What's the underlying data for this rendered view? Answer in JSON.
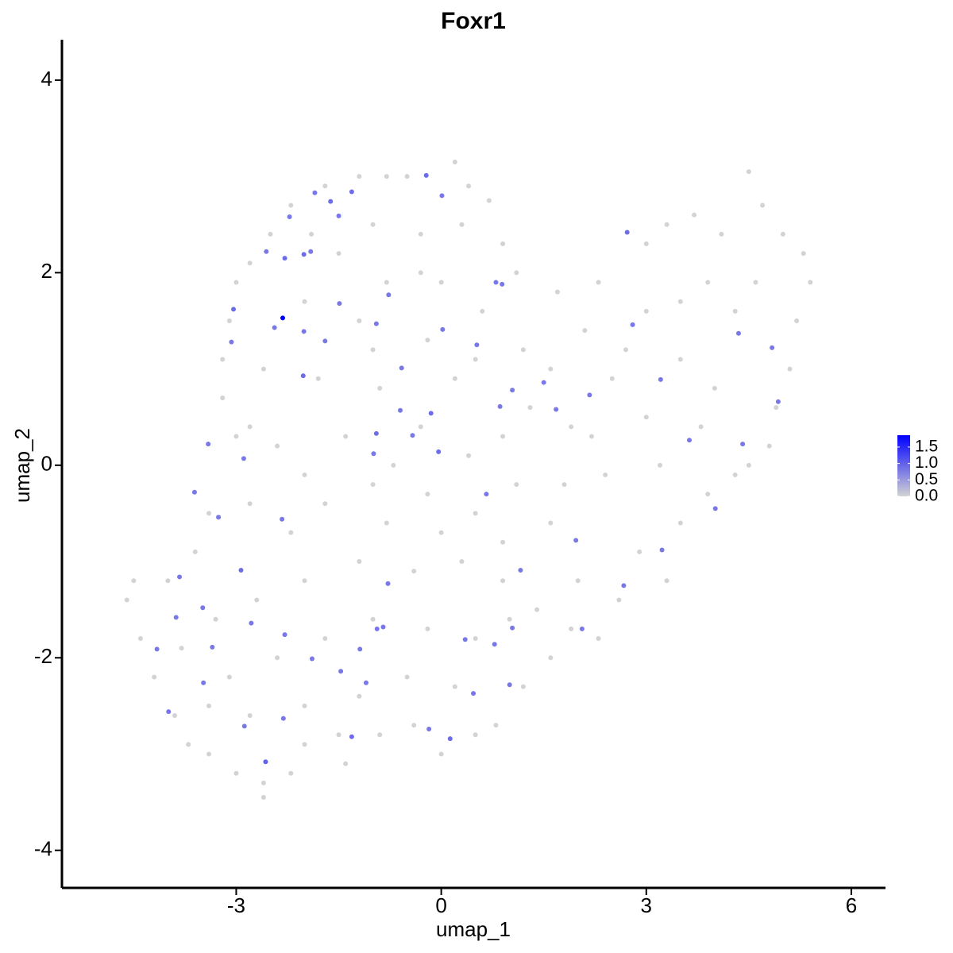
{
  "chart_data": {
    "type": "scatter",
    "title": "Foxr1",
    "x_label": "umap_1",
    "y_label": "umap_2",
    "x": [
      -2.32,
      -3.04,
      -3.07,
      -2.56,
      -2.29,
      -2.22,
      -2.01,
      -1.91,
      -1.85,
      -1.31,
      -1.62,
      -1.5,
      -0.22,
      0.01,
      -1.49,
      -2.01,
      -2.02,
      -1.7,
      -2.44,
      -2.89,
      -3.41,
      -3.61,
      -3.26,
      -2.33,
      -2.93,
      -3.83,
      -0.95,
      -0.58,
      -0.95,
      -0.6,
      -0.15,
      -0.42,
      -0.04,
      -0.99,
      -0.77,
      0.02,
      0.52,
      0.8,
      0.89,
      1.04,
      0.86,
      1.68,
      1.5,
      2.17,
      2.72,
      2.8,
      3.21,
      3.63,
      4.35,
      4.84,
      4.93,
      4.41,
      4.01,
      3.23,
      2.67,
      1.97,
      2.06,
      1.16,
      0.66,
      -0.78,
      -0.94,
      -0.85,
      1.04,
      0.35,
      0.78,
      1.0,
      0.47,
      -0.18,
      0.13,
      -1.19,
      -1.1,
      -1.31,
      -1.89,
      -1.47,
      -2.29,
      -2.78,
      -3.35,
      -3.48,
      -4.16,
      -3.99,
      -3.88,
      -3.49,
      -2.88,
      -2.57,
      -2.31,
      -1.7,
      -1.2,
      -0.8,
      -0.5,
      0.2,
      0.4,
      0.7,
      -2.2,
      -2.5,
      -2.8,
      -3.0,
      -3.1,
      -3.2,
      -3.2,
      -3.0,
      -1.0,
      -0.3,
      0.3,
      0.9,
      1.1,
      -1.5,
      -0.8,
      0.0,
      0.6,
      -2.0,
      -1.2,
      -0.2,
      1.2,
      -2.6,
      -1.8,
      -0.9,
      0.2,
      1.3,
      -2.8,
      -1.4,
      -0.3,
      0.9,
      1.9,
      2.5,
      2.1,
      1.7,
      2.3,
      3.0,
      3.3,
      3.7,
      4.1,
      4.5,
      4.7,
      5.0,
      5.3,
      5.4,
      5.2,
      5.1,
      4.9,
      4.8,
      4.5,
      4.3,
      3.9,
      3.5,
      3.0,
      4.3,
      4.6,
      2.7,
      3.5,
      4.0,
      3.0,
      3.8,
      2.4,
      3.2,
      3.9,
      3.5,
      2.9,
      3.3,
      2.6,
      2.0,
      1.6,
      1.1,
      0.5,
      -0.2,
      -1.0,
      -2.0,
      -2.8,
      -3.4,
      -3.6,
      -4.0,
      -4.5,
      -4.6,
      -4.4,
      -4.2,
      -3.9,
      -3.7,
      -3.4,
      -3.0,
      -2.6,
      -2.6,
      -2.2,
      -2.0,
      -1.5,
      -1.4,
      -0.9,
      -0.4,
      0.0,
      0.5,
      0.8,
      1.2,
      1.6,
      1.9,
      2.3,
      1.4,
      0.9,
      0.3,
      -0.4,
      -1.2,
      -2.0,
      -2.7,
      -3.3,
      -3.8,
      -3.1,
      -2.4,
      -1.7,
      -1.0,
      -0.2,
      0.5,
      1.0,
      -0.5,
      0.2,
      -1.2,
      -2.0,
      -2.8,
      -3.4,
      -0.7,
      0.4,
      -1.7,
      -2.4,
      -2.2,
      -0.8,
      0.0,
      0.9,
      1.8,
      2.2,
      1.6,
      -1.0,
      0.5,
      -1.9,
      -0.3
    ],
    "y": [
      1.53,
      1.62,
      1.28,
      2.22,
      2.15,
      2.58,
      2.19,
      2.22,
      2.83,
      2.84,
      2.74,
      2.59,
      3.01,
      2.8,
      1.68,
      1.39,
      0.93,
      1.29,
      1.43,
      0.07,
      0.22,
      -0.28,
      -0.54,
      -0.56,
      -1.09,
      -1.16,
      1.47,
      1.01,
      0.33,
      0.57,
      0.54,
      0.31,
      0.14,
      0.12,
      1.77,
      1.41,
      1.25,
      1.9,
      1.88,
      0.78,
      0.61,
      0.58,
      0.86,
      0.73,
      2.42,
      1.46,
      0.89,
      0.26,
      1.37,
      1.22,
      0.66,
      0.22,
      -0.45,
      -0.88,
      -1.25,
      -0.78,
      -1.7,
      -1.09,
      -0.3,
      -1.23,
      -1.7,
      -1.68,
      -1.69,
      -1.81,
      -1.86,
      -2.28,
      -2.37,
      -2.74,
      -2.84,
      -1.91,
      -2.26,
      -2.82,
      -2.01,
      -2.14,
      -1.76,
      -1.64,
      -1.89,
      -2.26,
      -1.91,
      -2.56,
      -1.58,
      -1.48,
      -2.71,
      -3.08,
      -2.63,
      2.9,
      3.0,
      3.0,
      3.0,
      3.15,
      2.9,
      2.75,
      2.7,
      2.4,
      2.1,
      1.9,
      1.5,
      1.1,
      0.7,
      0.3,
      2.5,
      2.4,
      2.5,
      2.3,
      2.0,
      2.2,
      1.9,
      1.9,
      1.6,
      1.7,
      1.5,
      1.3,
      1.2,
      1.0,
      0.9,
      0.8,
      0.9,
      0.6,
      0.4,
      0.3,
      0.4,
      0.3,
      0.4,
      0.9,
      1.4,
      1.8,
      1.9,
      2.3,
      2.5,
      2.6,
      2.4,
      3.05,
      2.7,
      2.4,
      2.2,
      1.9,
      1.5,
      1.0,
      0.6,
      0.2,
      0.0,
      -0.1,
      1.9,
      1.7,
      1.6,
      1.6,
      1.9,
      1.2,
      1.1,
      0.8,
      0.5,
      0.4,
      -0.1,
      0.0,
      -0.3,
      -0.6,
      -0.9,
      -1.2,
      -1.4,
      -1.2,
      -0.6,
      -0.2,
      -0.5,
      -0.3,
      -0.2,
      -0.1,
      -0.4,
      -0.5,
      -0.9,
      -1.2,
      -1.2,
      -1.4,
      -1.8,
      -2.2,
      -2.6,
      -2.9,
      -3.0,
      -3.2,
      -3.3,
      -3.45,
      -3.2,
      -2.9,
      -2.8,
      -3.1,
      -2.8,
      -2.7,
      -3.0,
      -2.8,
      -2.7,
      -2.3,
      -2.0,
      -1.7,
      -1.8,
      -1.5,
      -1.2,
      -1.0,
      -1.1,
      -1.0,
      -1.2,
      -1.4,
      -1.6,
      -1.9,
      -2.2,
      -2.0,
      -1.8,
      -1.6,
      -1.7,
      -1.8,
      -1.6,
      -2.2,
      -2.3,
      -2.4,
      -2.5,
      -2.6,
      -2.5,
      0.0,
      0.1,
      -0.4,
      0.2,
      -0.7,
      -0.6,
      -0.7,
      -0.8,
      -0.2,
      0.3,
      1.0,
      1.2,
      1.1,
      2.4,
      2.0
    ],
    "expression": [
      1.86,
      0.9,
      0.8,
      0.8,
      0.9,
      0.8,
      0.9,
      0.8,
      0.8,
      0.9,
      0.9,
      0.8,
      0.9,
      0.8,
      0.8,
      0.8,
      0.9,
      0.8,
      0.8,
      0.8,
      0.8,
      0.8,
      0.8,
      0.8,
      0.9,
      0.8,
      0.8,
      0.8,
      0.9,
      0.8,
      0.9,
      0.8,
      0.9,
      0.8,
      0.8,
      0.8,
      0.8,
      0.8,
      0.8,
      0.8,
      0.8,
      0.8,
      0.8,
      0.8,
      0.9,
      0.8,
      0.8,
      0.8,
      0.8,
      0.8,
      0.8,
      0.8,
      0.8,
      0.8,
      0.8,
      0.8,
      0.8,
      0.8,
      0.8,
      0.8,
      0.8,
      0.8,
      0.8,
      0.8,
      0.8,
      0.8,
      0.8,
      0.8,
      0.9,
      0.8,
      0.8,
      0.9,
      0.8,
      0.8,
      0.8,
      0.8,
      0.8,
      0.8,
      0.8,
      0.8,
      0.8,
      0.8,
      0.8,
      1.0,
      0.8,
      0,
      0,
      0,
      0,
      0,
      0,
      0,
      0,
      0,
      0,
      0,
      0,
      0,
      0,
      0,
      0,
      0,
      0,
      0,
      0,
      0,
      0,
      0,
      0,
      0,
      0,
      0,
      0,
      0,
      0,
      0,
      0,
      0,
      0,
      0,
      0,
      0,
      0,
      0,
      0,
      0,
      0,
      0,
      0,
      0,
      0,
      0,
      0,
      0,
      0,
      0,
      0,
      0,
      0,
      0,
      0,
      0,
      0,
      0,
      0,
      0,
      0,
      0,
      0,
      0,
      0,
      0,
      0,
      0,
      0,
      0,
      0,
      0,
      0,
      0,
      0,
      0,
      0,
      0,
      0,
      0,
      0,
      0,
      0,
      0,
      0,
      0,
      0,
      0,
      0,
      0,
      0,
      0,
      0,
      0,
      0,
      0,
      0,
      0,
      0,
      0,
      0,
      0,
      0,
      0,
      0,
      0,
      0,
      0,
      0,
      0,
      0,
      0,
      0,
      0,
      0,
      0,
      0,
      0,
      0,
      0,
      0,
      0,
      0,
      0,
      0,
      0,
      0,
      0,
      0,
      0,
      0,
      0,
      0,
      0,
      0,
      0,
      0,
      0,
      0,
      0,
      0,
      0,
      0,
      0,
      0,
      0
    ],
    "xlim": [
      -5.55,
      6.5
    ],
    "ylim": [
      -4.39,
      4.42
    ],
    "xticks": [
      -3,
      0,
      3,
      6
    ],
    "yticks": [
      -4,
      -2,
      0,
      2,
      4
    ],
    "colorbar": {
      "low_color": "#d3d3d3",
      "high_color": "#0000ff",
      "lim": [
        0,
        1.86
      ],
      "ticks": [
        {
          "value": 0,
          "label": "0.0"
        },
        0.5,
        {
          "value": 1,
          "label": "1.0"
        },
        1.5
      ]
    }
  }
}
